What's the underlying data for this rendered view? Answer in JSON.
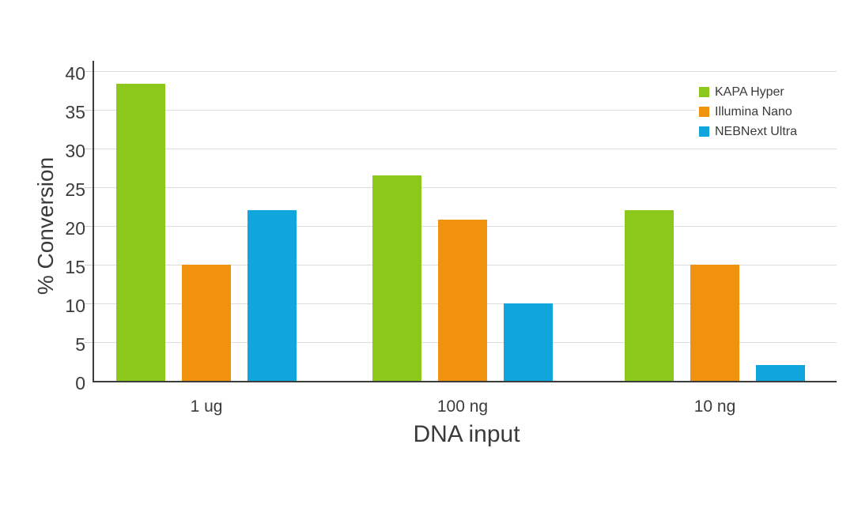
{
  "chart_data": {
    "type": "bar",
    "title": "",
    "xlabel": "DNA input",
    "ylabel": "% Conversion",
    "categories": [
      "1 ug",
      "100 ng",
      "10 ng"
    ],
    "series": [
      {
        "name": "KAPA Hyper",
        "color": "#8cc81a",
        "values": [
          38.4,
          26.5,
          22
        ]
      },
      {
        "name": "Illumina Nano",
        "color": "#f0920d",
        "values": [
          15,
          20.8,
          15
        ]
      },
      {
        "name": "NEBNext Ultra",
        "color": "#10a5dc",
        "values": [
          22,
          10,
          2
        ]
      }
    ],
    "ylim": [
      0,
      40
    ],
    "ytick_step": 5,
    "grid": "horizontal",
    "legend_position": "top-right",
    "axis_color": "#3d3d3d",
    "gridline_color": "#dddddd",
    "text_color": "#3b3b3b"
  }
}
